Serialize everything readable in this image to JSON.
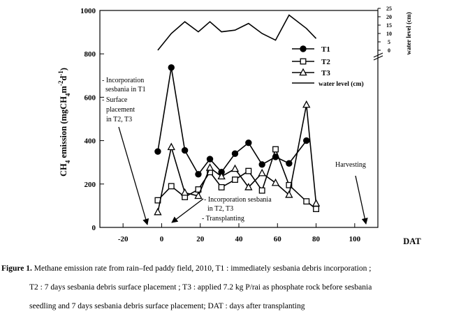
{
  "chart_data": {
    "type": "line",
    "ylabel": "CH4 emission (mgCH4m-2d-1)",
    "xlabel": "DAT",
    "xlim": [
      -32,
      112
    ],
    "ylim": [
      0,
      1000
    ],
    "xticks": [
      "-20",
      "0",
      "20",
      "40",
      "60",
      "80",
      "100"
    ],
    "yticks": [
      "0",
      "200",
      "400",
      "600",
      "800",
      "1000"
    ],
    "series": [
      {
        "name": "T1",
        "marker": "filled-circle",
        "x": [
          -2,
          5,
          12,
          19,
          25,
          31,
          38,
          45,
          52,
          59,
          66,
          75
        ],
        "y": [
          350,
          737,
          355,
          245,
          315,
          255,
          340,
          390,
          290,
          325,
          295,
          400
        ]
      },
      {
        "name": "T2",
        "marker": "open-square",
        "x": [
          -2,
          5,
          12,
          19,
          25,
          31,
          38,
          45,
          52,
          59,
          66,
          75,
          80
        ],
        "y": [
          125,
          190,
          140,
          175,
          255,
          185,
          220,
          260,
          170,
          360,
          195,
          120,
          85
        ]
      },
      {
        "name": "T3",
        "marker": "open-triangle",
        "x": [
          -2,
          5,
          12,
          19,
          25,
          31,
          38,
          45,
          52,
          59,
          66,
          75,
          80
        ],
        "y": [
          70,
          370,
          160,
          145,
          275,
          235,
          270,
          185,
          250,
          205,
          150,
          565,
          110
        ]
      }
    ],
    "water_level": {
      "name": "water level (cm)",
      "axis_label": "water level (cm)",
      "ticks": [
        "0",
        "5",
        "10",
        "15",
        "20",
        "25"
      ],
      "ylim": [
        0,
        25
      ],
      "x": [
        -2,
        5,
        12,
        19,
        25,
        31,
        38,
        45,
        52,
        59,
        66,
        75,
        80
      ],
      "y": [
        0,
        10,
        17,
        11,
        17,
        11,
        12,
        16,
        10,
        6,
        21,
        13,
        7
      ]
    },
    "annotations": {
      "incorporation_t1": [
        "- Incorporation",
        "sesbania in T1",
        "- Surface",
        "placement",
        "in T2, T3"
      ],
      "incorporation_t23": [
        "- Incorporation sesbania",
        "in T2, T3",
        "- Transplanting"
      ],
      "harvesting": "Harvesting"
    }
  },
  "caption": {
    "label": "Figure 1.",
    "line1_text": " Methane emission rate from rain–fed paddy field, 2010,   T1 : immediately sesbania debris incorporation ;",
    "line2": "T2 : 7 days sesbania debris surface placement ; T3 : applied 7.2 kg P/rai as phosphate rock before sesbania",
    "line3": "seedling and 7 days sesbania debris surface placement; DAT : days after transplanting"
  },
  "colors": {
    "line": "#000000",
    "background": "#ffffff"
  }
}
